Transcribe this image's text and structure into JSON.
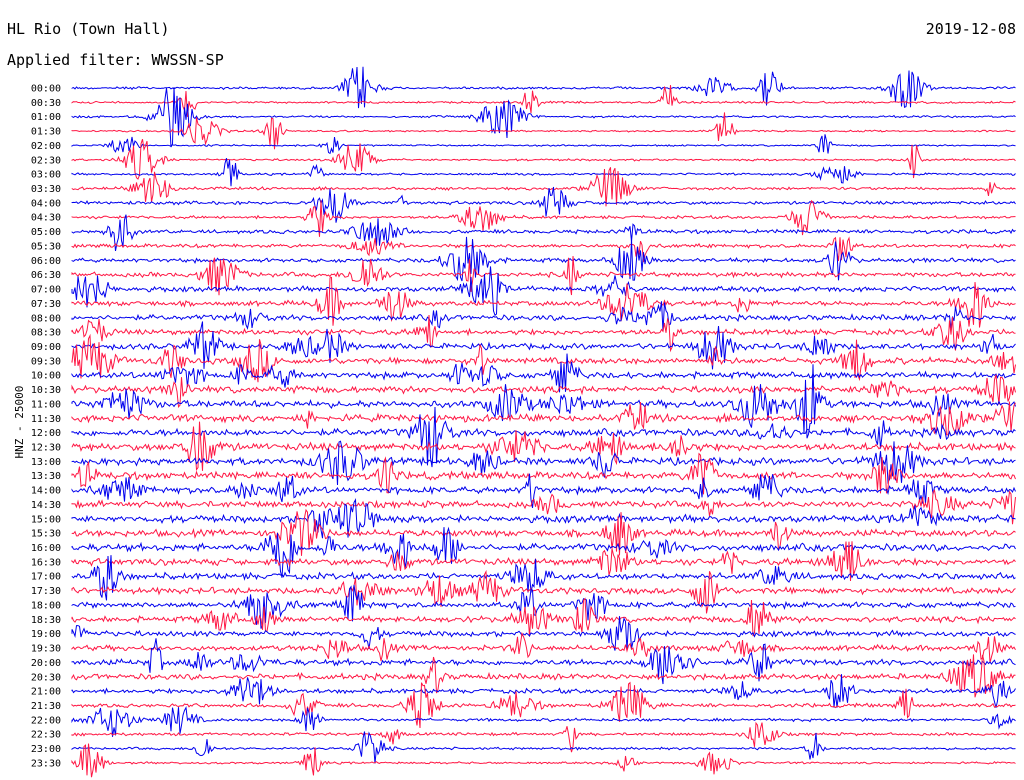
{
  "header": {
    "station": "HL Rio (Town Hall)",
    "date": "2019-12-08",
    "filter": "Applied filter: WWSSN-SP"
  },
  "chart_data": {
    "type": "line",
    "title": "HL Rio (Town Hall)",
    "ylabel": "HNZ - 25000",
    "colors": [
      "#0000ee",
      "#ff1744"
    ],
    "grid": false,
    "rows": [
      "00:00",
      "00:30",
      "01:00",
      "01:30",
      "02:00",
      "02:30",
      "03:00",
      "03:30",
      "04:00",
      "04:30",
      "05:00",
      "05:30",
      "06:00",
      "06:30",
      "07:00",
      "07:30",
      "08:00",
      "08:30",
      "09:00",
      "09:30",
      "10:00",
      "10:30",
      "11:00",
      "11:30",
      "12:00",
      "12:30",
      "13:00",
      "13:30",
      "14:00",
      "14:30",
      "15:00",
      "15:30",
      "16:00",
      "16:30",
      "17:00",
      "17:30",
      "18:00",
      "18:30",
      "19:00",
      "19:30",
      "20:00",
      "20:30",
      "21:00",
      "21:30",
      "22:00",
      "22:30",
      "23:00",
      "23:30"
    ],
    "noise_level": [
      0.3,
      0.25,
      0.25,
      0.2,
      0.2,
      0.25,
      0.25,
      0.35,
      0.4,
      0.35,
      0.45,
      0.45,
      0.5,
      0.55,
      0.6,
      0.6,
      0.65,
      0.65,
      0.7,
      0.75,
      0.75,
      0.8,
      0.85,
      0.85,
      0.85,
      0.9,
      0.85,
      0.85,
      0.8,
      0.8,
      0.85,
      0.8,
      0.85,
      0.8,
      0.75,
      0.75,
      0.7,
      0.7,
      0.65,
      0.65,
      0.7,
      0.7,
      0.55,
      0.45,
      0.35,
      0.35,
      0.3,
      0.25
    ]
  }
}
